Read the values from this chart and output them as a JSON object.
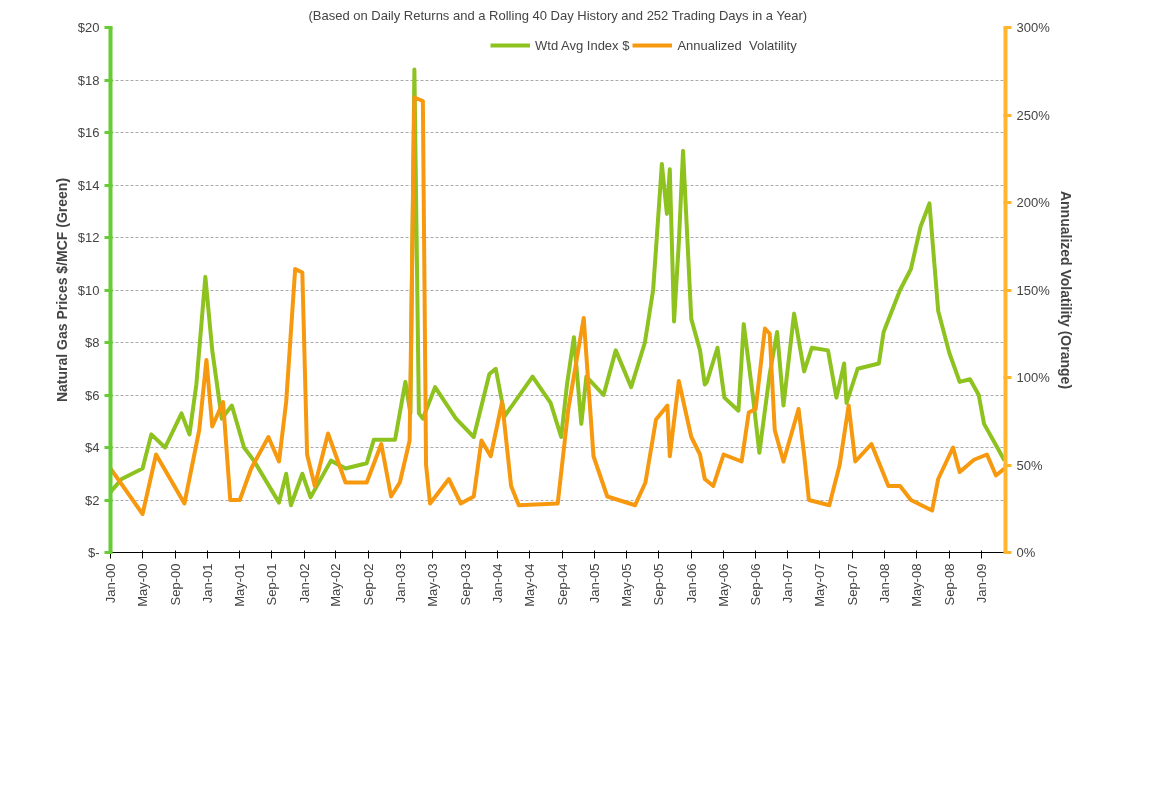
{
  "chart_data": {
    "type": "line",
    "title": "(Based on Daily Returns and a Rolling 40 Day History and 252 Trading Days in a Year)",
    "ylabel": "Natural Gas Prices $/MCF (Green)",
    "y2label": "Annualized Volatility (Orange)",
    "legend": "top",
    "grid": "y",
    "line_style": "solid",
    "marker": "none",
    "xlim": [
      "2000-01-01",
      "2009-04-01"
    ],
    "xticks": [
      {
        "value": "2000-01",
        "label": "Jan-00"
      },
      {
        "value": "2000-05",
        "label": "May-00"
      },
      {
        "value": "2000-09",
        "label": "Sep-00"
      },
      {
        "value": "2001-01",
        "label": "Jan-01"
      },
      {
        "value": "2001-05",
        "label": "May-01"
      },
      {
        "value": "2001-09",
        "label": "Sep-01"
      },
      {
        "value": "2002-01",
        "label": "Jan-02"
      },
      {
        "value": "2002-05",
        "label": "May-02"
      },
      {
        "value": "2002-09",
        "label": "Sep-02"
      },
      {
        "value": "2003-01",
        "label": "Jan-03"
      },
      {
        "value": "2003-05",
        "label": "May-03"
      },
      {
        "value": "2003-09",
        "label": "Sep-03"
      },
      {
        "value": "2004-01",
        "label": "Jan-04"
      },
      {
        "value": "2004-05",
        "label": "May-04"
      },
      {
        "value": "2004-09",
        "label": "Sep-04"
      },
      {
        "value": "2005-01",
        "label": "Jan-05"
      },
      {
        "value": "2005-05",
        "label": "May-05"
      },
      {
        "value": "2005-09",
        "label": "Sep-05"
      },
      {
        "value": "2006-01",
        "label": "Jan-06"
      },
      {
        "value": "2006-05",
        "label": "May-06"
      },
      {
        "value": "2006-09",
        "label": "Sep-06"
      },
      {
        "value": "2007-01",
        "label": "Jan-07"
      },
      {
        "value": "2007-05",
        "label": "May-07"
      },
      {
        "value": "2007-09",
        "label": "Sep-07"
      },
      {
        "value": "2008-01",
        "label": "Jan-08"
      },
      {
        "value": "2008-05",
        "label": "May-08"
      },
      {
        "value": "2008-09",
        "label": "Sep-08"
      },
      {
        "value": "2009-01",
        "label": "Jan-09"
      }
    ],
    "ylim": [
      0,
      20
    ],
    "yticks": [
      {
        "value": 0,
        "label": "$-"
      },
      {
        "value": 2,
        "label": "$2"
      },
      {
        "value": 4,
        "label": "$4"
      },
      {
        "value": 6,
        "label": "$6"
      },
      {
        "value": 8,
        "label": "$8"
      },
      {
        "value": 10,
        "label": "$10"
      },
      {
        "value": 12,
        "label": "$12"
      },
      {
        "value": 14,
        "label": "$14"
      },
      {
        "value": 16,
        "label": "$16"
      },
      {
        "value": 18,
        "label": "$18"
      },
      {
        "value": 20,
        "label": "$20"
      }
    ],
    "y2lim": [
      0,
      300
    ],
    "y2ticks": [
      {
        "value": 0,
        "label": "0%"
      },
      {
        "value": 50,
        "label": "50%"
      },
      {
        "value": 100,
        "label": "100%"
      },
      {
        "value": 150,
        "label": "150%"
      },
      {
        "value": 200,
        "label": "200%"
      },
      {
        "value": 250,
        "label": "250%"
      },
      {
        "value": 300,
        "label": "300%"
      }
    ],
    "series": [
      {
        "name": "Wtd Avg Index $",
        "color": "#8dc21f",
        "x": [
          "2000-01-01",
          "2000-02-12",
          "2000-05-01",
          "2000-06-03",
          "2000-07-25",
          "2000-09-25",
          "2000-10-25",
          "2000-11-20",
          "2000-12-24",
          "2001-01-19",
          "2001-02-24",
          "2001-04-03",
          "2001-05-19",
          "2001-06-25",
          "2001-09-28",
          "2001-10-25",
          "2001-11-12",
          "2001-12-25",
          "2002-01-25",
          "2002-04-12",
          "2002-06-06",
          "2002-08-25",
          "2002-09-21",
          "2002-12-10",
          "2003-01-18",
          "2003-02-06",
          "2003-02-21",
          "2003-03-10",
          "2003-03-25",
          "2003-05-10",
          "2003-07-28",
          "2003-10-03",
          "2003-12-01",
          "2003-12-25",
          "2004-01-28",
          "2004-05-12",
          "2004-07-19",
          "2004-08-28",
          "2004-09-19",
          "2004-10-15",
          "2004-11-12",
          "2004-12-01",
          "2005-02-04",
          "2005-03-22",
          "2005-05-19",
          "2005-07-10",
          "2005-08-10",
          "2005-08-28",
          "2005-09-12",
          "2005-10-01",
          "2005-10-12",
          "2005-10-28",
          "2005-11-15",
          "2005-12-01",
          "2006-01-01",
          "2006-02-03",
          "2006-02-21",
          "2006-03-01",
          "2006-04-10",
          "2006-05-06",
          "2006-06-28",
          "2006-07-18",
          "2006-08-21",
          "2006-09-15",
          "2006-10-24",
          "2006-11-21",
          "2006-12-15",
          "2007-01-24",
          "2007-03-03",
          "2007-04-01",
          "2007-06-01",
          "2007-07-03",
          "2007-08-01",
          "2007-08-10",
          "2007-09-21",
          "2007-12-10",
          "2007-12-28",
          "2008-02-28",
          "2008-04-09",
          "2008-05-15",
          "2008-06-18",
          "2008-07-21",
          "2008-09-01",
          "2008-10-10",
          "2008-11-18",
          "2008-12-21",
          "2009-01-10",
          "2009-03-01",
          "2009-03-28"
        ],
        "values": [
          2.3,
          2.8,
          3.2,
          4.5,
          4.0,
          5.3,
          4.5,
          6.4,
          10.5,
          7.7,
          5.1,
          5.6,
          4.0,
          3.5,
          1.9,
          3.0,
          1.8,
          3.0,
          2.1,
          3.5,
          3.2,
          3.4,
          4.3,
          4.3,
          6.5,
          5.3,
          18.4,
          5.3,
          5.1,
          6.3,
          5.1,
          4.4,
          6.8,
          7.0,
          5.2,
          6.7,
          5.7,
          4.4,
          6.4,
          8.2,
          4.9,
          6.7,
          6.0,
          7.7,
          6.3,
          8.0,
          10.0,
          12.6,
          14.8,
          12.9,
          14.6,
          8.8,
          11.8,
          15.3,
          8.9,
          7.7,
          6.4,
          6.5,
          7.8,
          5.9,
          5.4,
          8.7,
          6.0,
          3.8,
          6.8,
          8.4,
          5.6,
          9.1,
          6.9,
          7.8,
          7.7,
          5.9,
          7.2,
          5.7,
          7.0,
          7.2,
          8.4,
          10.0,
          10.8,
          12.4,
          13.3,
          9.2,
          7.6,
          6.5,
          6.6,
          6.0,
          4.9,
          4.0,
          3.5
        ]
      },
      {
        "name": "Annualized  Volatility",
        "color": "#f7990f",
        "axis": "y2",
        "x": [
          "2000-01-01",
          "2000-05-01",
          "2000-06-21",
          "2000-10-06",
          "2000-12-01",
          "2000-12-28",
          "2001-01-19",
          "2001-03-01",
          "2001-03-28",
          "2001-05-03",
          "2001-06-15",
          "2001-08-19",
          "2001-09-28",
          "2001-10-25",
          "2001-11-28",
          "2001-12-25",
          "2002-01-12",
          "2002-02-10",
          "2002-04-01",
          "2002-06-06",
          "2002-08-25",
          "2002-10-19",
          "2002-11-25",
          "2002-12-28",
          "2003-02-03",
          "2003-02-21",
          "2003-03-25",
          "2003-04-06",
          "2003-04-21",
          "2003-07-01",
          "2003-08-15",
          "2003-10-03",
          "2003-11-01",
          "2003-12-06",
          "2004-01-18",
          "2004-02-21",
          "2004-03-21",
          "2004-08-15",
          "2004-09-24",
          "2004-11-21",
          "2004-12-28",
          "2005-02-18",
          "2005-06-03",
          "2005-07-12",
          "2005-08-21",
          "2005-10-03",
          "2005-10-12",
          "2005-11-15",
          "2006-01-01",
          "2006-02-03",
          "2006-02-21",
          "2006-03-25",
          "2006-05-03",
          "2006-07-10",
          "2006-08-06",
          "2006-09-01",
          "2006-10-06",
          "2006-10-24",
          "2006-11-12",
          "2006-12-15",
          "2007-02-10",
          "2007-03-03",
          "2007-03-21",
          "2007-06-06",
          "2007-07-15",
          "2007-08-18",
          "2007-09-12",
          "2007-11-12",
          "2008-01-15",
          "2008-02-28",
          "2008-04-09",
          "2008-06-28",
          "2008-07-21",
          "2008-09-15",
          "2008-10-10",
          "2008-12-03",
          "2009-01-21",
          "2009-02-24",
          "2009-03-28"
        ],
        "values": [
          48,
          22,
          56,
          28,
          70,
          110,
          72,
          86,
          30,
          30,
          48,
          66,
          52,
          86,
          162,
          160,
          56,
          38,
          68,
          40,
          40,
          62,
          32,
          40,
          64,
          260,
          258,
          50,
          28,
          42,
          28,
          32,
          64,
          55,
          86,
          38,
          27,
          28,
          82,
          134,
          55,
          32,
          27,
          40,
          76,
          84,
          55,
          98,
          66,
          56,
          42,
          38,
          56,
          52,
          80,
          82,
          128,
          125,
          70,
          52,
          82,
          56,
          30,
          27,
          50,
          84,
          52,
          62,
          38,
          38,
          30,
          24,
          42,
          60,
          46,
          53,
          56,
          44,
          48
        ]
      }
    ]
  }
}
